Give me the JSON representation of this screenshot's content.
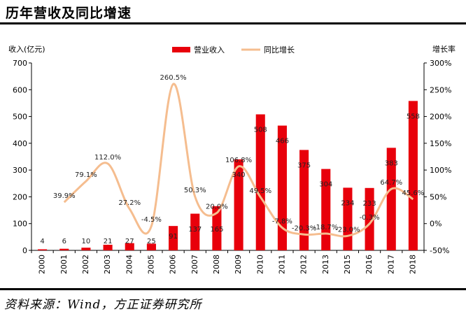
{
  "page": {
    "title": "历年营收及同比增速",
    "source": "资料来源：Wind，方正证券研究所"
  },
  "colors": {
    "bar": "#e8000b",
    "line": "#f5bd8f",
    "axis": "#000000"
  },
  "chart_data": {
    "type": "bar",
    "title": "",
    "ylabel": "收入(亿元)",
    "y2label": "增长率",
    "ylim": [
      0,
      700
    ],
    "y2lim": [
      -50,
      300
    ],
    "yticks": [
      "0",
      "100",
      "200",
      "300",
      "400",
      "500",
      "600",
      "700"
    ],
    "y2ticks": [
      "-50%",
      "0%",
      "50%",
      "100%",
      "150%",
      "200%",
      "250%",
      "300%"
    ],
    "grid": false,
    "legend_position": "top-center",
    "categories": [
      "2000",
      "2001",
      "2002",
      "2003",
      "2004",
      "2005",
      "2006",
      "2007",
      "2008",
      "2009",
      "2010",
      "2011",
      "2012",
      "2013",
      "2015",
      "2016",
      "2017",
      "2018"
    ],
    "series": [
      {
        "name": "营业收入",
        "type": "bar",
        "axis": "left",
        "values": [
          4,
          6,
          10,
          21,
          27,
          25,
          91,
          137,
          165,
          340,
          508,
          466,
          375,
          304,
          234,
          233,
          383,
          558
        ],
        "labels": [
          "4",
          "6",
          "10",
          "21",
          "27",
          "25",
          "91",
          "137",
          "165",
          "340",
          "508",
          "466",
          "375",
          "304",
          "234",
          "233",
          "383",
          "558"
        ]
      },
      {
        "name": "同比增长",
        "type": "line",
        "axis": "right",
        "values": [
          null,
          39.9,
          79.1,
          112.0,
          27.2,
          -4.5,
          260.5,
          50.3,
          20.0,
          106.8,
          49.5,
          -7.8,
          -20.3,
          -18.7,
          -23.0,
          -0.3,
          64.7,
          45.6
        ],
        "labels": [
          "",
          "39.9%",
          "79.1%",
          "112.0%",
          "27.2%",
          "-4.5%",
          "260.5%",
          "50.3%",
          "20.0%",
          "106.8%",
          "49.5%",
          "-7.8%",
          "-20.3%",
          "-18.7%",
          "-23.0%",
          "-0.3%",
          "64.7%",
          "45.6%"
        ]
      }
    ]
  }
}
